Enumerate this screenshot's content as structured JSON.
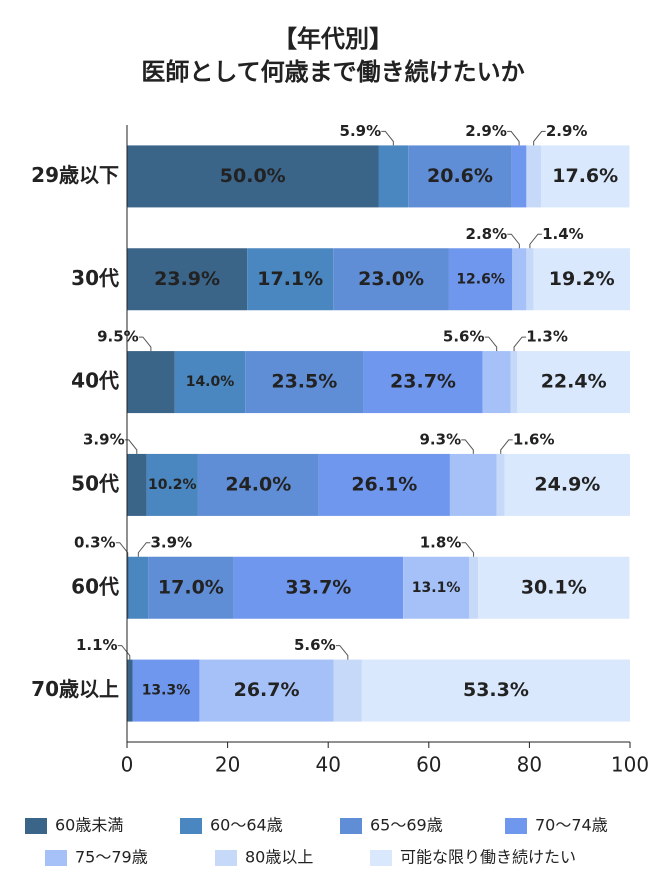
{
  "chart_data": {
    "type": "stacked-barh",
    "title": "【年代別】",
    "subtitle": "医師として何歳まで働き続けたいか",
    "categories": [
      "29歳以下",
      "30代",
      "40代",
      "50代",
      "60代",
      "70歳以上"
    ],
    "xlim": [
      0,
      100
    ],
    "xticks": [
      0,
      20,
      40,
      60,
      80,
      100
    ],
    "series": [
      {
        "name": "60歳未満",
        "color": "#3b6489",
        "values": [
          50.0,
          23.9,
          9.5,
          3.9,
          0.3,
          1.1
        ],
        "value_labels": [
          "50.0%",
          "23.9%",
          "9.5%",
          "3.9%",
          "0.3%",
          "1.1%"
        ]
      },
      {
        "name": "60～64歳",
        "color": "#4a86bf",
        "values": [
          5.9,
          17.1,
          14.0,
          10.2,
          3.9,
          null
        ],
        "value_labels": [
          "5.9%",
          "17.1%",
          "14.0%",
          "10.2%",
          "3.9%",
          null
        ]
      },
      {
        "name": "65～69歳",
        "color": "#5f8dd6",
        "values": [
          20.6,
          23.0,
          23.5,
          24.0,
          17.0,
          null
        ],
        "value_labels": [
          "20.6%",
          "23.0%",
          "23.5%",
          "24.0%",
          "17.0%",
          null
        ]
      },
      {
        "name": "70～74歳",
        "color": "#7097ee",
        "values": [
          2.9,
          12.6,
          23.7,
          26.1,
          33.7,
          13.3
        ],
        "value_labels": [
          "2.9%",
          "12.6%",
          "23.7%",
          "26.1%",
          "33.7%",
          "13.3%"
        ]
      },
      {
        "name": "75～79歳",
        "color": "#a5c1f7",
        "values": [
          null,
          2.8,
          5.6,
          9.3,
          13.1,
          26.7
        ],
        "value_labels": [
          null,
          "2.8%",
          "5.6%",
          "9.3%",
          "13.1%",
          "26.7%"
        ]
      },
      {
        "name": "80歳以上",
        "color": "#c6d9f9",
        "values": [
          2.9,
          1.4,
          1.3,
          1.6,
          1.8,
          5.6
        ],
        "value_labels": [
          "2.9%",
          "1.4%",
          "1.3%",
          "1.6%",
          "1.8%",
          "5.6%"
        ]
      },
      {
        "name": "可能な限り働き続けたい",
        "color": "#d9e8fc",
        "values": [
          17.6,
          19.2,
          22.4,
          24.9,
          30.1,
          53.3
        ],
        "value_labels": [
          "17.6%",
          "19.2%",
          "22.4%",
          "24.9%",
          "30.1%",
          "53.3%"
        ]
      }
    ]
  }
}
